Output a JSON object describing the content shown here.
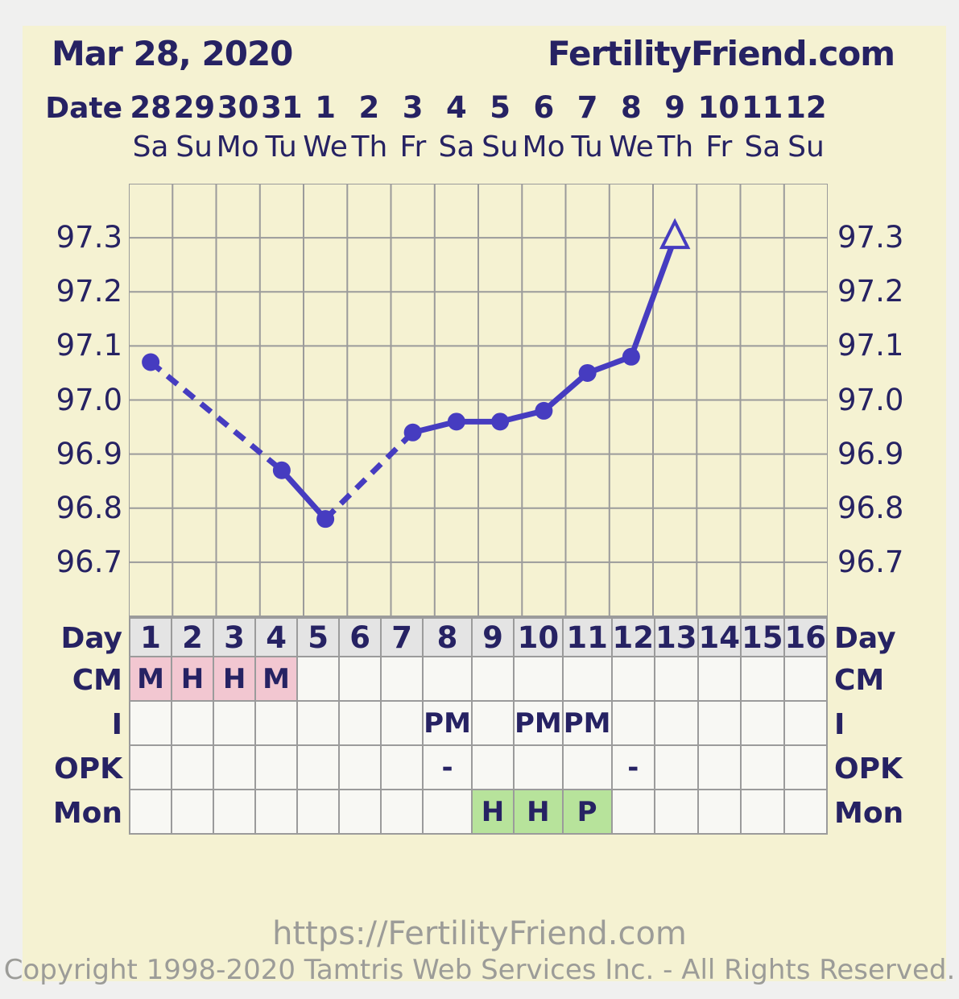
{
  "header": {
    "date": "Mar 28, 2020",
    "brand": "FertilityFriend.com"
  },
  "axis": {
    "date_label": "Date",
    "dates": [
      "28",
      "29",
      "30",
      "31",
      "1",
      "2",
      "3",
      "4",
      "5",
      "6",
      "7",
      "8",
      "9",
      "10",
      "11",
      "12"
    ],
    "weekdays": [
      "Sa",
      "Su",
      "Mo",
      "Tu",
      "We",
      "Th",
      "Fr",
      "Sa",
      "Su",
      "Mo",
      "Tu",
      "We",
      "Th",
      "Fr",
      "Sa",
      "Su"
    ],
    "temp_ticks": [
      "97.3",
      "97.2",
      "97.1",
      "97.0",
      "96.9",
      "96.8",
      "96.7"
    ]
  },
  "chart_data": {
    "type": "line",
    "title": "Basal body temperature chart - Mar 28, 2020",
    "x_days": [
      1,
      2,
      3,
      4,
      5,
      6,
      7,
      8,
      9,
      10,
      11,
      12,
      13,
      14,
      15,
      16
    ],
    "x_dates": [
      "28",
      "29",
      "30",
      "31",
      "1",
      "2",
      "3",
      "4",
      "5",
      "6",
      "7",
      "8",
      "9",
      "10",
      "11",
      "12"
    ],
    "x_weekdays": [
      "Sa",
      "Su",
      "Mo",
      "Tu",
      "We",
      "Th",
      "Fr",
      "Sa",
      "Su",
      "Mo",
      "Tu",
      "We",
      "Th",
      "Fr",
      "Sa",
      "Su"
    ],
    "series": [
      {
        "name": "temperature",
        "points": [
          {
            "day": 1,
            "temp": 97.07,
            "marker": "dot"
          },
          {
            "day": 4,
            "temp": 96.87,
            "marker": "dot"
          },
          {
            "day": 5,
            "temp": 96.78,
            "marker": "dot"
          },
          {
            "day": 7,
            "temp": 96.94,
            "marker": "dot"
          },
          {
            "day": 8,
            "temp": 96.96,
            "marker": "dot"
          },
          {
            "day": 9,
            "temp": 96.96,
            "marker": "dot"
          },
          {
            "day": 10,
            "temp": 96.98,
            "marker": "dot"
          },
          {
            "day": 11,
            "temp": 97.05,
            "marker": "dot"
          },
          {
            "day": 12,
            "temp": 97.08,
            "marker": "dot"
          },
          {
            "day": 13,
            "temp": 97.3,
            "marker": "open-triangle"
          }
        ]
      }
    ],
    "ylim": [
      96.6,
      97.4
    ],
    "ytick_step": 0.1,
    "ytick_labels": [
      "97.3",
      "97.2",
      "97.1",
      "97.0",
      "96.9",
      "96.8",
      "96.7"
    ],
    "grid": true,
    "legend": false,
    "line_rule": "segments spanning missed days are dashed"
  },
  "table": {
    "rows": [
      {
        "key": "day",
        "label": "Day",
        "values": [
          "1",
          "2",
          "3",
          "4",
          "5",
          "6",
          "7",
          "8",
          "9",
          "10",
          "11",
          "12",
          "13",
          "14",
          "15",
          "16"
        ]
      },
      {
        "key": "cm",
        "label": "CM",
        "values": [
          "M",
          "H",
          "H",
          "M",
          "",
          "",
          "",
          "",
          "",
          "",
          "",
          "",
          "",
          "",
          "",
          ""
        ],
        "fill_key": "pink"
      },
      {
        "key": "i",
        "label": "I",
        "values": [
          "",
          "",
          "",
          "",
          "",
          "",
          "",
          "PM",
          "",
          "PM",
          "PM",
          "",
          "",
          "",
          "",
          ""
        ]
      },
      {
        "key": "opk",
        "label": "OPK",
        "values": [
          "",
          "",
          "",
          "",
          "",
          "",
          "",
          "-",
          "",
          "",
          "",
          "-",
          "",
          "",
          "",
          ""
        ]
      },
      {
        "key": "mon",
        "label": "Mon",
        "values": [
          "",
          "",
          "",
          "",
          "",
          "",
          "",
          "",
          "H",
          "H",
          "P",
          "",
          "",
          "",
          "",
          ""
        ],
        "fill_key": "green"
      }
    ]
  },
  "footer": {
    "url": "https://FertilityFriend.com",
    "copyright": "Copyright 1998-2020 Tamtris Web Services Inc. - All Rights Reserved."
  },
  "colors": {
    "line": "#463cc0",
    "navy": "#262263",
    "cream": "#f5f2d2",
    "grid": "#9b9b9b",
    "pink": "#f2c7d1",
    "green": "#b7e39b",
    "day_header_gray": "#e4e4e4",
    "cell_bg": "#f8f8f4",
    "footer_gray": "#9c9c98"
  }
}
